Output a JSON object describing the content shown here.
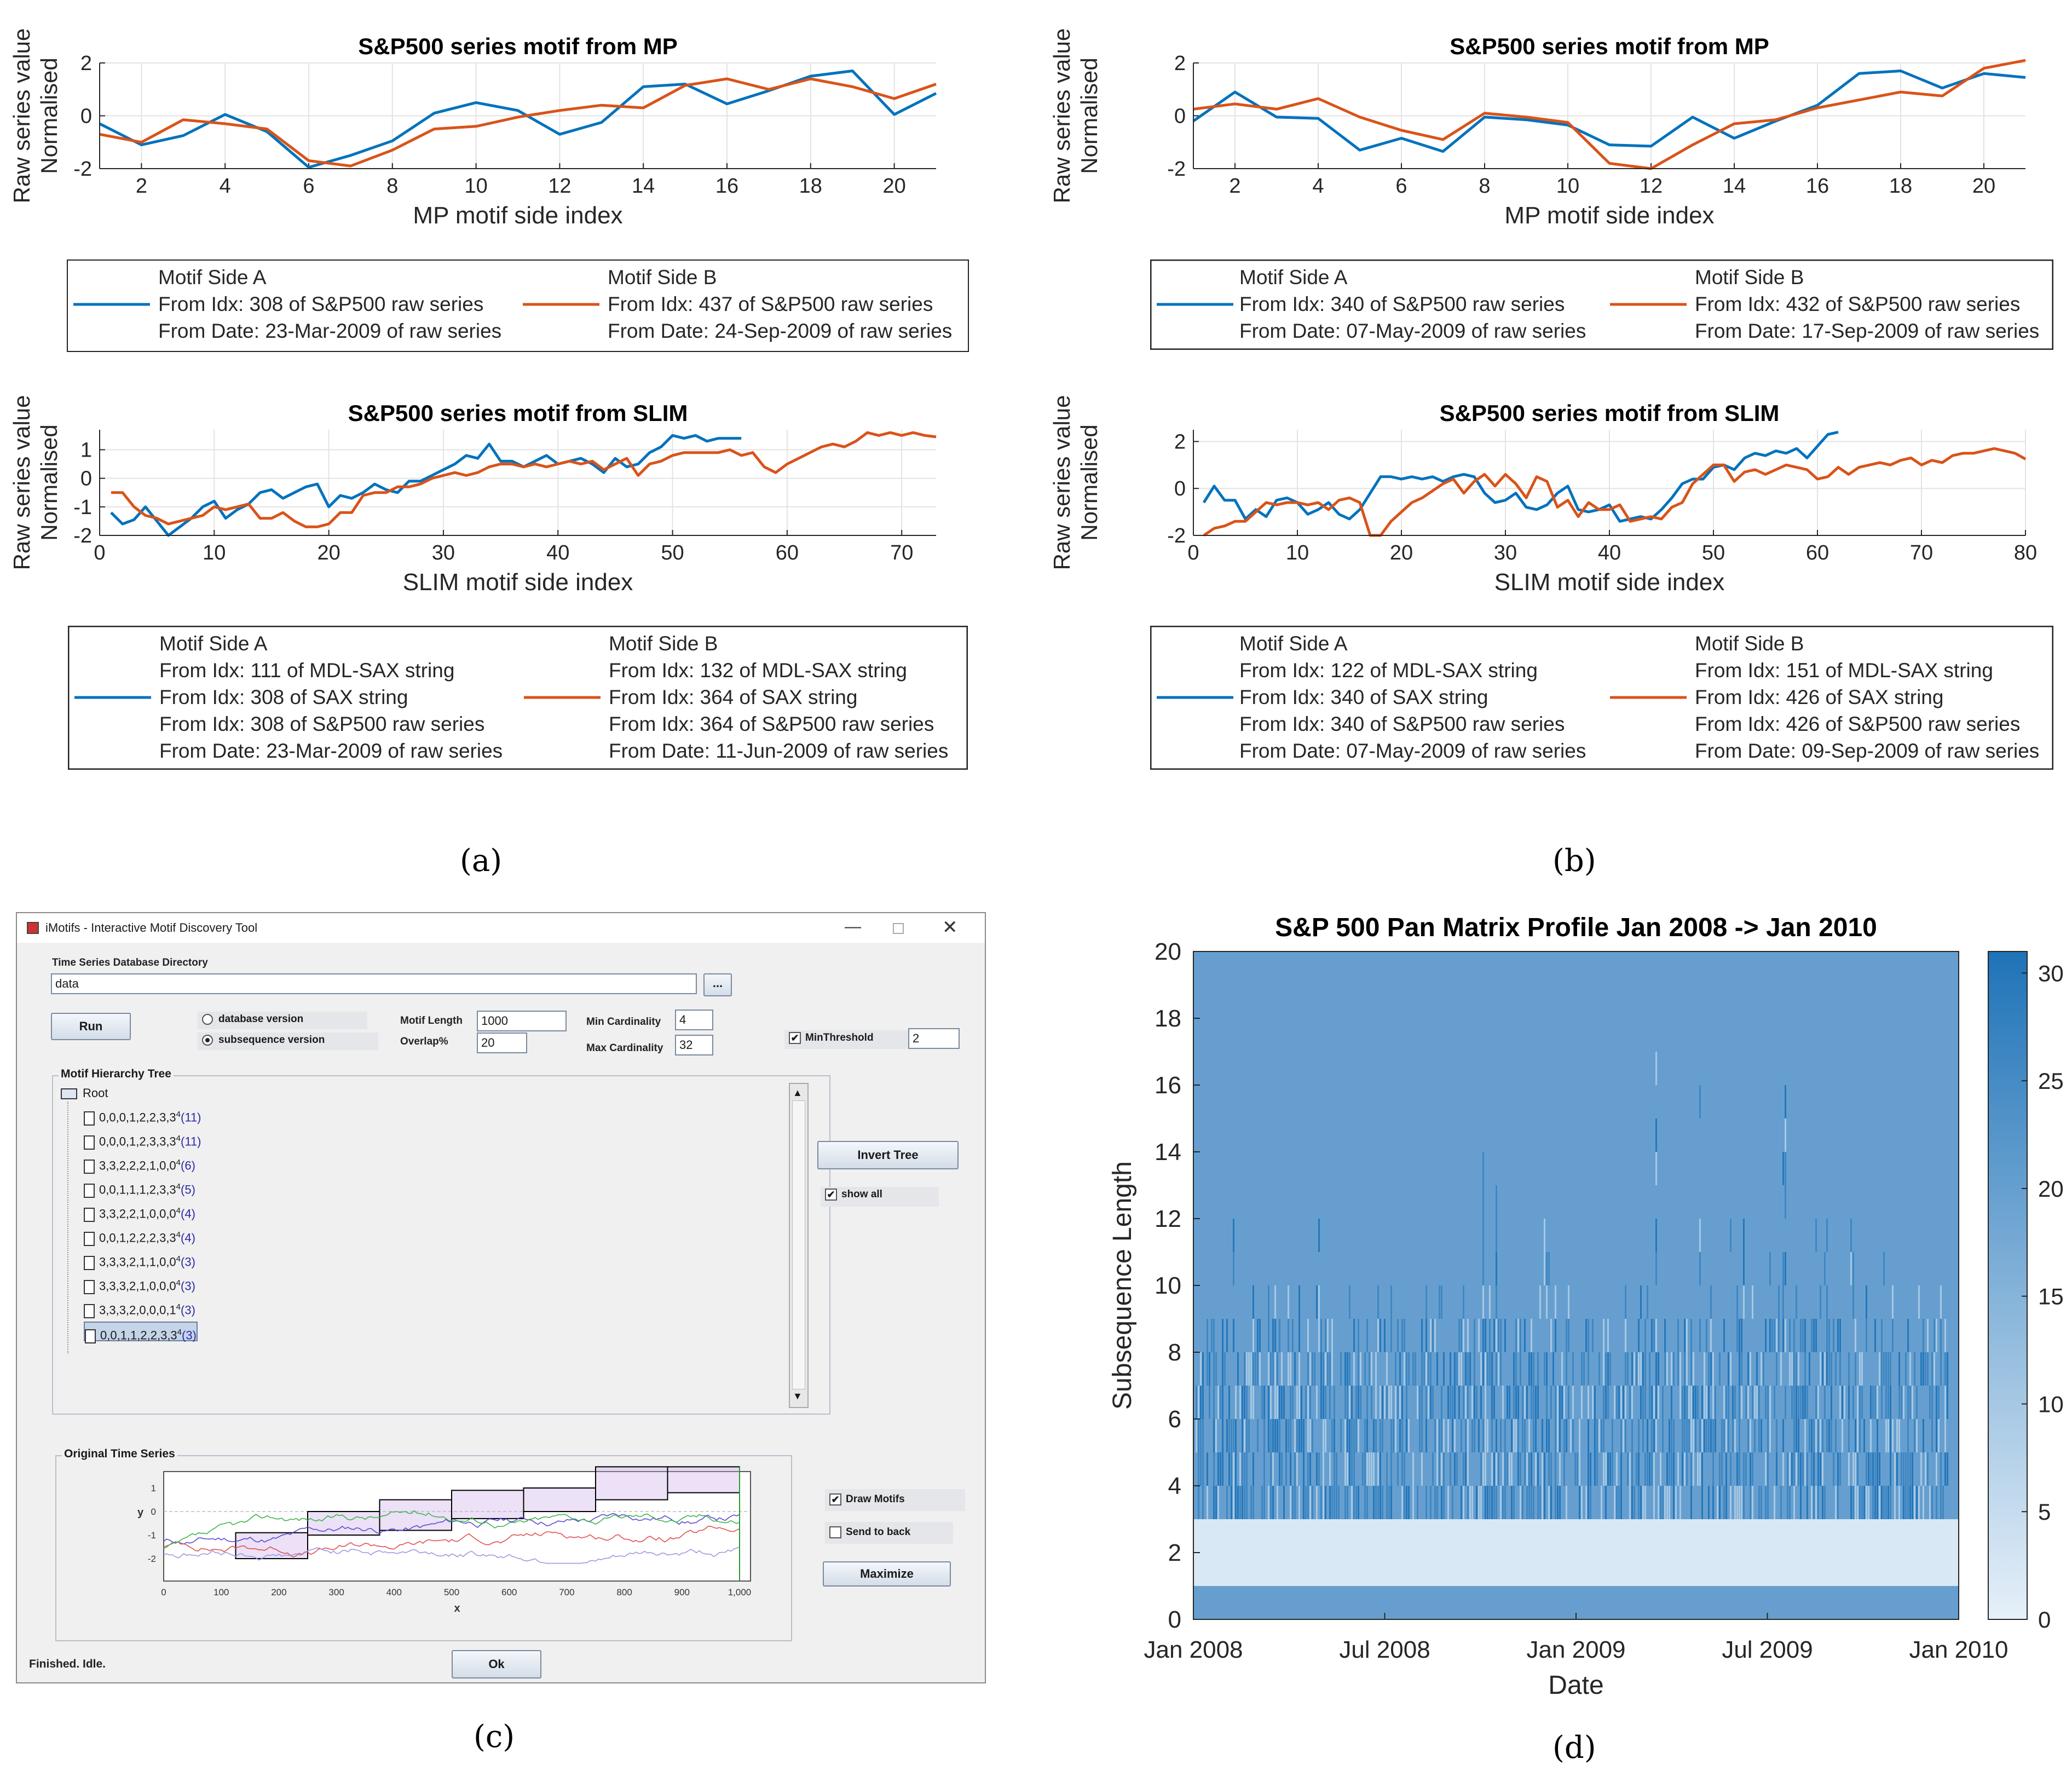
{
  "panel_labels": {
    "a": "(a)",
    "b": "(b)",
    "c": "(c)",
    "d": "(d)"
  },
  "colors": {
    "blue": "#0072BD",
    "orange": "#D95319",
    "heat_low": "#e6f0f9",
    "heat_high": "#1f73b8"
  },
  "chart_data": [
    {
      "id": "a_mp",
      "type": "line",
      "title": "S&P500 series motif from MP",
      "xlabel": "MP motif side index",
      "ylabel": [
        "Raw series value",
        "Normalised"
      ],
      "xlim": [
        1,
        21
      ],
      "ylim": [
        -2,
        2
      ],
      "xticks": [
        2,
        4,
        6,
        8,
        10,
        12,
        14,
        16,
        18,
        20
      ],
      "yticks": [
        -2,
        0,
        2
      ],
      "x": [
        1,
        2,
        3,
        4,
        5,
        6,
        7,
        8,
        9,
        10,
        11,
        12,
        13,
        14,
        15,
        16,
        17,
        18,
        19,
        20,
        21
      ],
      "series": [
        {
          "name": "Motif Side A",
          "color": "#0072BD",
          "values": [
            -0.3,
            -1.1,
            -0.75,
            0.05,
            -0.6,
            -1.95,
            -1.5,
            -0.95,
            0.1,
            0.5,
            0.2,
            -0.7,
            -0.25,
            1.1,
            1.2,
            0.45,
            0.95,
            1.5,
            1.7,
            0.05,
            0.85
          ]
        },
        {
          "name": "Motif Side B",
          "color": "#D95319",
          "values": [
            -0.7,
            -1.0,
            -0.15,
            -0.3,
            -0.5,
            -1.7,
            -1.9,
            -1.3,
            -0.5,
            -0.4,
            -0.05,
            0.2,
            0.4,
            0.3,
            1.15,
            1.4,
            1.0,
            1.4,
            1.1,
            0.65,
            1.2
          ]
        }
      ],
      "legend": {
        "a": [
          "Motif Side A",
          "From Idx: 308 of S&P500 raw series",
          "From Date: 23-Mar-2009 of raw series"
        ],
        "b": [
          "Motif Side B",
          "From Idx: 437 of S&P500 raw series",
          "From Date: 24-Sep-2009 of raw series"
        ]
      }
    },
    {
      "id": "b_mp",
      "type": "line",
      "title": "S&P500 series motif from MP",
      "xlabel": "MP motif side index",
      "ylabel": [
        "Raw series value",
        "Normalised"
      ],
      "xlim": [
        1,
        21
      ],
      "ylim": [
        -2,
        2
      ],
      "xticks": [
        2,
        4,
        6,
        8,
        10,
        12,
        14,
        16,
        18,
        20
      ],
      "yticks": [
        -2,
        0,
        2
      ],
      "x": [
        1,
        2,
        3,
        4,
        5,
        6,
        7,
        8,
        9,
        10,
        11,
        12,
        13,
        14,
        15,
        16,
        17,
        18,
        19,
        20,
        21
      ],
      "series": [
        {
          "name": "Motif Side A",
          "color": "#0072BD",
          "values": [
            -0.2,
            0.9,
            -0.05,
            -0.1,
            -1.3,
            -0.85,
            -1.35,
            -0.05,
            -0.15,
            -0.35,
            -1.1,
            -1.15,
            -0.05,
            -0.85,
            -0.2,
            0.4,
            1.6,
            1.7,
            1.05,
            1.6,
            1.45
          ]
        },
        {
          "name": "Motif Side B",
          "color": "#D95319",
          "values": [
            0.25,
            0.45,
            0.25,
            0.65,
            -0.05,
            -0.55,
            -0.9,
            0.1,
            -0.05,
            -0.25,
            -1.8,
            -2.0,
            -1.1,
            -0.3,
            -0.15,
            0.3,
            0.6,
            0.9,
            0.75,
            1.8,
            2.1
          ]
        }
      ],
      "legend": {
        "a": [
          "Motif Side A",
          "From Idx: 340 of S&P500 raw series",
          "From Date: 07-May-2009 of raw series"
        ],
        "b": [
          "Motif Side B",
          "From Idx: 432 of S&P500 raw series",
          "From Date: 17-Sep-2009 of raw series"
        ]
      }
    },
    {
      "id": "a_slim",
      "type": "line",
      "title": "S&P500 series motif from SLIM",
      "xlabel": "SLIM motif side index",
      "ylabel": [
        "Raw series value",
        "Normalised"
      ],
      "xlim": [
        0,
        73
      ],
      "ylim": [
        -2,
        1.7
      ],
      "xticks": [
        0,
        10,
        20,
        30,
        40,
        50,
        60,
        70
      ],
      "yticks": [
        -2,
        -1,
        0,
        1
      ],
      "series": [
        {
          "name": "Motif Side A",
          "color": "#0072BD",
          "x_start": 1,
          "values": [
            -1.2,
            -1.6,
            -1.45,
            -1.0,
            -1.5,
            -2.0,
            -1.7,
            -1.4,
            -1.0,
            -0.8,
            -1.4,
            -1.1,
            -0.9,
            -0.5,
            -0.4,
            -0.7,
            -0.5,
            -0.3,
            -0.2,
            -1.0,
            -0.6,
            -0.7,
            -0.5,
            -0.2,
            -0.4,
            -0.5,
            -0.1,
            -0.1,
            0.1,
            0.3,
            0.5,
            0.8,
            0.7,
            1.2,
            0.6,
            0.6,
            0.4,
            0.6,
            0.8,
            0.5,
            0.6,
            0.7,
            0.5,
            0.2,
            0.7,
            0.4,
            0.5,
            0.9,
            1.1,
            1.5,
            1.4,
            1.5,
            1.3,
            1.4,
            1.4,
            1.4
          ]
        },
        {
          "name": "Motif Side B",
          "color": "#D95319",
          "x_start": 1,
          "values": [
            -0.5,
            -0.5,
            -1.0,
            -1.3,
            -1.4,
            -1.6,
            -1.5,
            -1.4,
            -1.3,
            -1.0,
            -1.1,
            -1.0,
            -0.9,
            -1.4,
            -1.4,
            -1.2,
            -1.5,
            -1.7,
            -1.7,
            -1.6,
            -1.2,
            -1.2,
            -0.6,
            -0.5,
            -0.5,
            -0.3,
            -0.3,
            -0.2,
            0.0,
            0.1,
            0.2,
            0.1,
            0.2,
            0.4,
            0.5,
            0.5,
            0.4,
            0.5,
            0.4,
            0.5,
            0.6,
            0.5,
            0.6,
            0.3,
            0.5,
            0.7,
            0.1,
            0.5,
            0.6,
            0.8,
            0.9,
            0.9,
            0.9,
            0.9,
            1.0,
            0.8,
            0.9,
            0.4,
            0.2,
            0.5,
            0.7,
            0.9,
            1.1,
            1.2,
            1.1,
            1.3,
            1.6,
            1.5,
            1.6,
            1.5,
            1.6,
            1.5,
            1.45
          ]
        }
      ],
      "legend": {
        "a": [
          "Motif Side A",
          "From Idx: 111 of MDL-SAX string",
          "From Idx: 308 of SAX string",
          "From Idx: 308 of S&P500 raw series",
          "From Date: 23-Mar-2009 of raw series"
        ],
        "b": [
          "Motif Side B",
          "From Idx: 132 of MDL-SAX string",
          "From Idx: 364 of SAX string",
          "From Idx: 364 of S&P500 raw series",
          "From Date: 11-Jun-2009 of raw series"
        ]
      }
    },
    {
      "id": "b_slim",
      "type": "line",
      "title": "S&P500 series motif from SLIM",
      "xlabel": "SLIM motif side index",
      "ylabel": [
        "Raw series value",
        "Normalised"
      ],
      "xlim": [
        0,
        80
      ],
      "ylim": [
        -2,
        2.5
      ],
      "xticks": [
        0,
        10,
        20,
        30,
        40,
        50,
        60,
        70,
        80
      ],
      "yticks": [
        -2,
        0,
        2
      ],
      "series": [
        {
          "name": "Motif Side A",
          "color": "#0072BD",
          "x_start": 1,
          "values": [
            -0.6,
            0.1,
            -0.5,
            -0.5,
            -1.3,
            -0.9,
            -1.2,
            -0.5,
            -0.4,
            -0.6,
            -1.1,
            -0.9,
            -0.6,
            -1.1,
            -1.3,
            -0.9,
            -0.2,
            0.5,
            0.5,
            0.4,
            0.5,
            0.4,
            0.5,
            0.3,
            0.5,
            0.6,
            0.5,
            -0.2,
            -0.6,
            -0.5,
            -0.2,
            -0.8,
            -0.9,
            -0.7,
            -0.2,
            0.1,
            -0.9,
            -1.0,
            -0.9,
            -0.7,
            -1.4,
            -1.3,
            -1.2,
            -1.3,
            -0.9,
            -0.4,
            0.2,
            0.4,
            0.4,
            0.9,
            1.0,
            0.8,
            1.3,
            1.5,
            1.4,
            1.6,
            1.5,
            1.7,
            1.3,
            1.8,
            2.3,
            2.4
          ]
        },
        {
          "name": "Motif Side B",
          "color": "#D95319",
          "x_start": 1,
          "values": [
            -2.0,
            -1.7,
            -1.6,
            -1.4,
            -1.4,
            -1.0,
            -0.6,
            -0.7,
            -0.6,
            -0.6,
            -0.7,
            -0.6,
            -0.9,
            -0.5,
            -0.4,
            -0.6,
            -2.0,
            -2.0,
            -1.4,
            -1.0,
            -0.6,
            -0.4,
            -0.1,
            0.2,
            0.4,
            -0.2,
            0.3,
            0.6,
            0.1,
            0.6,
            0.2,
            -0.4,
            0.5,
            0.3,
            -0.8,
            -0.5,
            -1.2,
            -0.6,
            -0.9,
            -0.9,
            -0.7,
            -1.4,
            -1.3,
            -1.2,
            -1.3,
            -0.8,
            -0.6,
            0.2,
            0.6,
            1.0,
            1.0,
            0.3,
            0.7,
            0.8,
            0.6,
            0.8,
            1.0,
            0.9,
            0.8,
            0.4,
            0.5,
            0.9,
            0.6,
            0.9,
            1.0,
            1.1,
            1.0,
            1.2,
            1.3,
            1.0,
            1.2,
            1.1,
            1.4,
            1.5,
            1.5,
            1.6,
            1.7,
            1.6,
            1.5,
            1.25
          ]
        }
      ],
      "legend": {
        "a": [
          "Motif Side A",
          "From Idx: 122 of MDL-SAX string",
          "From Idx: 340 of SAX string",
          "From Idx: 340 of S&P500 raw series",
          "From Date: 07-May-2009 of raw series"
        ],
        "b": [
          "Motif Side B",
          "From Idx: 151 of MDL-SAX string",
          "From Idx: 426 of SAX string",
          "From Idx: 426 of S&P500 raw series",
          "From Date: 09-Sep-2009 of raw series"
        ]
      }
    },
    {
      "id": "d_heatmap",
      "type": "heatmap",
      "title": "S&P 500 Pan Matrix Profile Jan 2008 -> Jan 2010",
      "xlabel": "Date",
      "ylabel": "Subsequence Length",
      "ylim": [
        0,
        20
      ],
      "yticks": [
        0,
        2,
        4,
        6,
        8,
        10,
        12,
        14,
        16,
        18,
        20
      ],
      "xticklabels": [
        "Jan 2008",
        "Jul 2008",
        "Jan 2009",
        "Jul 2009",
        "Jan 2010"
      ],
      "colorbar": {
        "min": 0,
        "max": 31,
        "ticks": [
          0,
          5,
          10,
          15,
          20,
          25,
          30
        ]
      },
      "bands": [
        {
          "from": 0,
          "to": 1,
          "value": 20
        },
        {
          "from": 1,
          "to": 3,
          "value": 2
        },
        {
          "from": 3,
          "to": 20,
          "value": 20
        }
      ]
    }
  ],
  "imotifs": {
    "window_title": "iMotifs - Interactive Motif Discovery Tool",
    "db_dir_label": "Time Series Database Directory",
    "db_dir_value": "data",
    "browse_label": "...",
    "run_label": "Run",
    "radio_database": "database version",
    "radio_subsequence": "subsequence version",
    "motif_length_label": "Motif Length",
    "motif_length_value": "1000",
    "overlap_label": "Overlap%",
    "overlap_value": "20",
    "min_card_label": "Min Cardinality",
    "min_card_value": "4",
    "max_card_label": "Max Cardinality",
    "max_card_value": "32",
    "minthreshold_label": "MinThreshold",
    "minthreshold_value": "2",
    "tree_panel_title": "Motif Hierarchy Tree",
    "tree_root": "Root",
    "tree_items": [
      {
        "code": "0,0,0,1,2,2,3,3",
        "sup": "4",
        "count": "(11)"
      },
      {
        "code": "0,0,0,1,2,3,3,3",
        "sup": "4",
        "count": "(11)"
      },
      {
        "code": "3,3,2,2,2,1,0,0",
        "sup": "4",
        "count": "(6)"
      },
      {
        "code": "0,0,1,1,1,2,3,3",
        "sup": "4",
        "count": "(5)"
      },
      {
        "code": "3,3,2,2,1,0,0,0",
        "sup": "4",
        "count": "(4)"
      },
      {
        "code": "0,0,1,2,2,2,3,3",
        "sup": "4",
        "count": "(4)"
      },
      {
        "code": "3,3,3,2,1,1,0,0",
        "sup": "4",
        "count": "(3)"
      },
      {
        "code": "3,3,3,2,1,0,0,0",
        "sup": "4",
        "count": "(3)"
      },
      {
        "code": "3,3,3,2,0,0,0,1",
        "sup": "4",
        "count": "(3)"
      },
      {
        "code": "0,0,1,1,2,2,3,3",
        "sup": "4",
        "count": "(3)"
      }
    ],
    "invert_tree_label": "Invert Tree",
    "show_all_label": "show all",
    "orig_ts_title": "Original Time Series",
    "draw_motifs_label": "Draw Motifs",
    "send_to_back_label": "Send to back",
    "maximize_label": "Maximize",
    "status_text": "Finished. Idle.",
    "ok_label": "Ok",
    "mini_chart": {
      "xlabel": "x",
      "ylabel": "y",
      "xticks": [
        "0",
        "100",
        "200",
        "300",
        "400",
        "500",
        "600",
        "700",
        "800",
        "900",
        "1,000"
      ],
      "yticks": [
        "1",
        "0",
        "-1",
        "-2"
      ]
    }
  }
}
